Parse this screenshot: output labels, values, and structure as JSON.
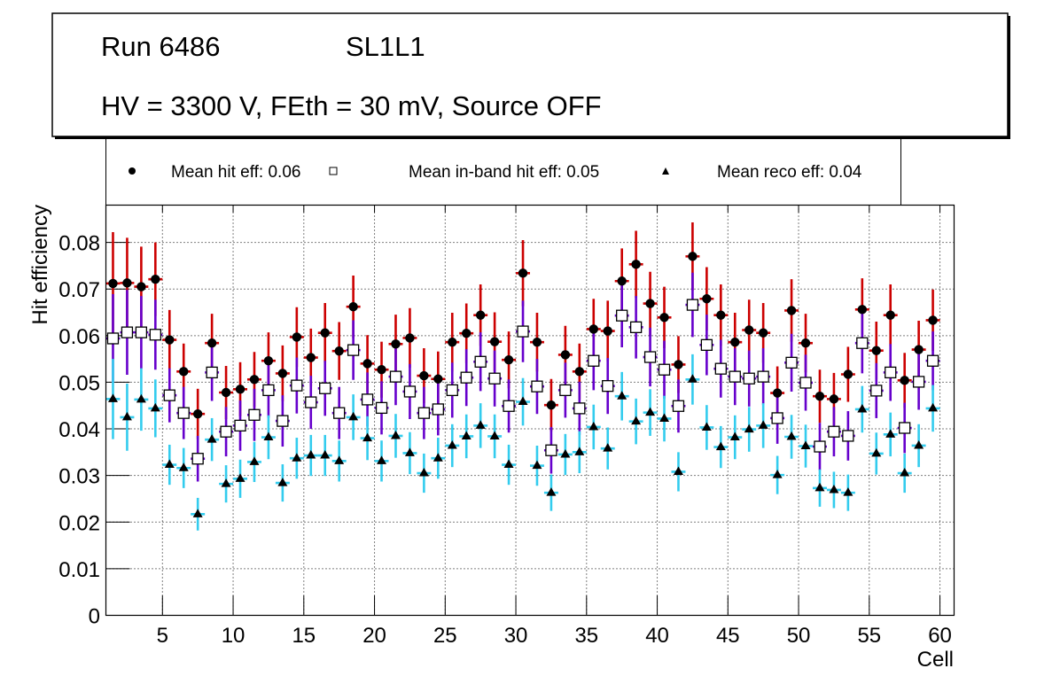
{
  "title_box": {
    "run_label": "Run 6486",
    "layer_label": "SL1L1",
    "conditions": "HV = 3300 V, FEth = 30 mV, Source OFF"
  },
  "legend": {
    "entries": [
      {
        "label": "Mean hit  eff: 0.06",
        "marker": "filled-circle",
        "series": "hit"
      },
      {
        "label": "Mean in-band hit eff: 0.05",
        "marker": "open-square",
        "series": "inband"
      },
      {
        "label": "Mean reco eff: 0.04",
        "marker": "filled-triangle",
        "series": "reco"
      }
    ]
  },
  "colors": {
    "hit": "#cc0000",
    "inband": "#6600cc",
    "reco": "#33ccee",
    "marker": "#000000"
  },
  "chart_data": {
    "type": "scatter",
    "title": "Run 6486 SL1L1 — HV = 3300 V, FEth = 30 mV, Source OFF",
    "xlabel": "Cell",
    "ylabel": "Hit efficiency",
    "xlim": [
      1,
      61
    ],
    "ylim": [
      0,
      0.088
    ],
    "grid": true,
    "legend_position": "top",
    "x_ticks": [
      5,
      10,
      15,
      20,
      25,
      30,
      35,
      40,
      45,
      50,
      55,
      60
    ],
    "x_tick_labels": [
      "5",
      "10",
      "15",
      "20",
      "25",
      "30",
      "35",
      "40",
      "45",
      "50",
      "55",
      "60"
    ],
    "y_ticks": [
      0,
      0.01,
      0.02,
      0.03,
      0.04,
      0.05,
      0.06,
      0.07,
      0.08
    ],
    "y_tick_labels": [
      "0",
      "0.01",
      "0.02",
      "0.03",
      "0.04",
      "0.05",
      "0.06",
      "0.07",
      "0.08"
    ],
    "x": [
      1,
      2,
      3,
      4,
      5,
      6,
      7,
      8,
      9,
      10,
      11,
      12,
      13,
      14,
      15,
      16,
      17,
      18,
      19,
      20,
      21,
      22,
      23,
      24,
      25,
      26,
      27,
      28,
      29,
      30,
      31,
      32,
      33,
      34,
      35,
      36,
      37,
      38,
      39,
      40,
      41,
      42,
      43,
      44,
      45,
      46,
      47,
      48,
      49,
      50,
      51,
      52,
      53,
      54,
      55,
      56,
      57,
      58,
      59
    ],
    "series": [
      {
        "name": "Mean hit  eff: 0.06",
        "key": "hit",
        "values": [
          0.0712,
          0.0713,
          0.0705,
          0.0721,
          0.0591,
          0.0523,
          0.0432,
          0.0584,
          0.0478,
          0.0485,
          0.0506,
          0.0546,
          0.0519,
          0.0597,
          0.0553,
          0.0606,
          0.0567,
          0.0662,
          0.054,
          0.0527,
          0.0582,
          0.0595,
          0.0514,
          0.0507,
          0.0586,
          0.0605,
          0.0644,
          0.0587,
          0.0548,
          0.0734,
          0.0586,
          0.0451,
          0.0559,
          0.0523,
          0.0614,
          0.061,
          0.0717,
          0.0753,
          0.0669,
          0.0639,
          0.0538,
          0.077,
          0.0679,
          0.0644,
          0.0586,
          0.0612,
          0.0606,
          0.0477,
          0.0654,
          0.0584,
          0.047,
          0.0464,
          0.0517,
          0.0656,
          0.0568,
          0.0644,
          0.0504,
          0.057,
          0.0633
        ],
        "errors": [
          0.011,
          0.0097,
          0.0086,
          0.0079,
          0.0064,
          0.006,
          0.0054,
          0.0063,
          0.0057,
          0.0058,
          0.0059,
          0.0061,
          0.006,
          0.0064,
          0.0062,
          0.0064,
          0.0062,
          0.0067,
          0.0061,
          0.006,
          0.0063,
          0.0064,
          0.0059,
          0.0059,
          0.0063,
          0.0064,
          0.0066,
          0.0063,
          0.0061,
          0.0071,
          0.0063,
          0.0056,
          0.0062,
          0.006,
          0.0065,
          0.0065,
          0.007,
          0.0072,
          0.0068,
          0.0066,
          0.0061,
          0.0073,
          0.0068,
          0.0066,
          0.0063,
          0.0065,
          0.0064,
          0.0057,
          0.0067,
          0.0063,
          0.0057,
          0.0056,
          0.0059,
          0.0067,
          0.0062,
          0.0066,
          0.0059,
          0.0062,
          0.0066
        ]
      },
      {
        "name": "Mean in-band hit eff: 0.05",
        "key": "inband",
        "values": [
          0.0594,
          0.0607,
          0.0607,
          0.0602,
          0.0472,
          0.0434,
          0.0336,
          0.0521,
          0.0394,
          0.0407,
          0.043,
          0.0483,
          0.0417,
          0.0493,
          0.0457,
          0.0487,
          0.0434,
          0.0569,
          0.0463,
          0.0445,
          0.0512,
          0.048,
          0.0434,
          0.0442,
          0.0483,
          0.051,
          0.0544,
          0.0508,
          0.0449,
          0.0609,
          0.0491,
          0.0354,
          0.0483,
          0.0444,
          0.0546,
          0.0492,
          0.0643,
          0.0618,
          0.0554,
          0.0527,
          0.0449,
          0.0666,
          0.058,
          0.0529,
          0.0512,
          0.0508,
          0.0512,
          0.0423,
          0.0542,
          0.0499,
          0.0362,
          0.0394,
          0.0385,
          0.0584,
          0.0482,
          0.0521,
          0.0402,
          0.0501,
          0.0546
        ],
        "errors": [
          0.0095,
          0.0091,
          0.0078,
          0.0075,
          0.0058,
          0.0056,
          0.0049,
          0.0061,
          0.0053,
          0.0054,
          0.0056,
          0.0059,
          0.0055,
          0.006,
          0.0057,
          0.0059,
          0.0056,
          0.0064,
          0.0058,
          0.0057,
          0.0061,
          0.0059,
          0.0056,
          0.0056,
          0.0059,
          0.0061,
          0.0063,
          0.006,
          0.0057,
          0.0066,
          0.0059,
          0.005,
          0.0059,
          0.0057,
          0.0063,
          0.006,
          0.0068,
          0.0067,
          0.0063,
          0.0062,
          0.0057,
          0.0069,
          0.0065,
          0.0062,
          0.0061,
          0.006,
          0.0061,
          0.0055,
          0.0062,
          0.006,
          0.0051,
          0.0053,
          0.0053,
          0.0065,
          0.0059,
          0.0061,
          0.0054,
          0.006,
          0.0063
        ]
      },
      {
        "name": "Mean reco eff: 0.04",
        "key": "reco",
        "values": [
          0.0464,
          0.0425,
          0.0463,
          0.0444,
          0.0323,
          0.0316,
          0.0217,
          0.0377,
          0.0282,
          0.0293,
          0.0329,
          0.0382,
          0.0284,
          0.0337,
          0.0343,
          0.0343,
          0.0331,
          0.0425,
          0.038,
          0.0331,
          0.0385,
          0.0348,
          0.0305,
          0.0337,
          0.0364,
          0.0384,
          0.0407,
          0.0384,
          0.0323,
          0.0458,
          0.0321,
          0.0263,
          0.0345,
          0.035,
          0.0404,
          0.0358,
          0.047,
          0.0416,
          0.0435,
          0.0422,
          0.0308,
          0.0506,
          0.0403,
          0.0361,
          0.0382,
          0.0399,
          0.0407,
          0.0301,
          0.0383,
          0.0363,
          0.0273,
          0.0269,
          0.0263,
          0.0442,
          0.0347,
          0.0388,
          0.0305,
          0.0364,
          0.0444
        ],
        "errors": [
          0.0086,
          0.0072,
          0.0067,
          0.0062,
          0.0043,
          0.0043,
          0.0035,
          0.0046,
          0.004,
          0.0041,
          0.0043,
          0.0047,
          0.004,
          0.0044,
          0.0044,
          0.0044,
          0.0044,
          0.0049,
          0.0047,
          0.0044,
          0.0047,
          0.0045,
          0.0042,
          0.0044,
          0.0046,
          0.0047,
          0.0048,
          0.0047,
          0.0043,
          0.0051,
          0.0043,
          0.0039,
          0.0044,
          0.0045,
          0.0048,
          0.0045,
          0.0052,
          0.0049,
          0.005,
          0.0049,
          0.0042,
          0.0054,
          0.0048,
          0.0045,
          0.0047,
          0.0048,
          0.0048,
          0.0041,
          0.0047,
          0.0046,
          0.004,
          0.0039,
          0.0039,
          0.005,
          0.0045,
          0.0047,
          0.0042,
          0.0046,
          0.005
        ]
      }
    ]
  }
}
